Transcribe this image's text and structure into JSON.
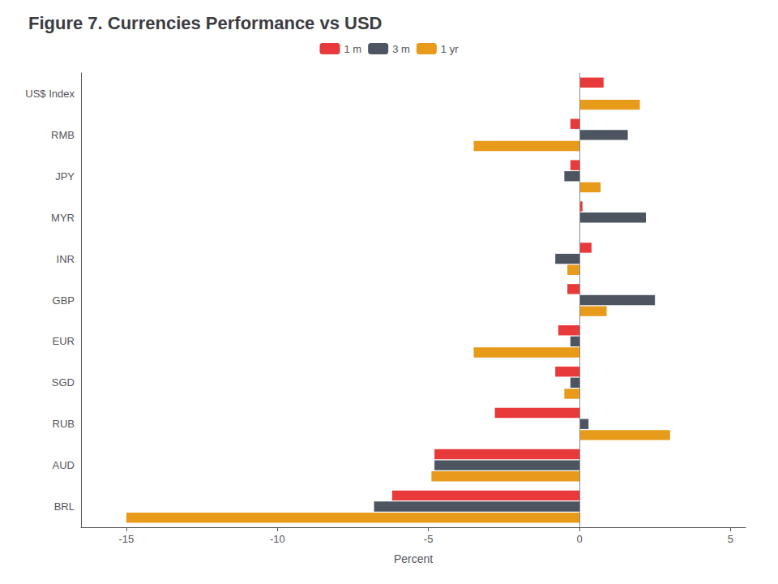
{
  "chart_data": {
    "type": "bar",
    "orientation": "horizontal",
    "title": "Figure 7. Currencies Performance vs USD",
    "categories": [
      "US$ Index",
      "RMB",
      "JPY",
      "MYR",
      "INR",
      "GBP",
      "EUR",
      "SGD",
      "RUB",
      "AUD",
      "BRL"
    ],
    "series": [
      {
        "name": "1 m",
        "color": "#e83a3a",
        "values": [
          0.8,
          -0.3,
          -0.3,
          0.1,
          0.4,
          -0.4,
          -0.7,
          -0.8,
          -2.8,
          -4.8,
          -6.2
        ]
      },
      {
        "name": "3 m",
        "color": "#4d5561",
        "values": [
          0.0,
          1.6,
          -0.5,
          2.2,
          -0.8,
          2.5,
          -0.3,
          -0.3,
          0.3,
          -4.8,
          -6.8
        ]
      },
      {
        "name": "1 yr",
        "color": "#e89a1a",
        "values": [
          2.0,
          -3.5,
          0.7,
          0.0,
          -0.4,
          0.9,
          -3.5,
          -0.5,
          3.0,
          -4.9,
          -15.0
        ]
      }
    ],
    "xlabel": "Percent",
    "xlim": [
      -16.5,
      5.5
    ],
    "xticks": [
      -15,
      -10,
      -5,
      0,
      5
    ],
    "grid": false,
    "legend": "top"
  }
}
